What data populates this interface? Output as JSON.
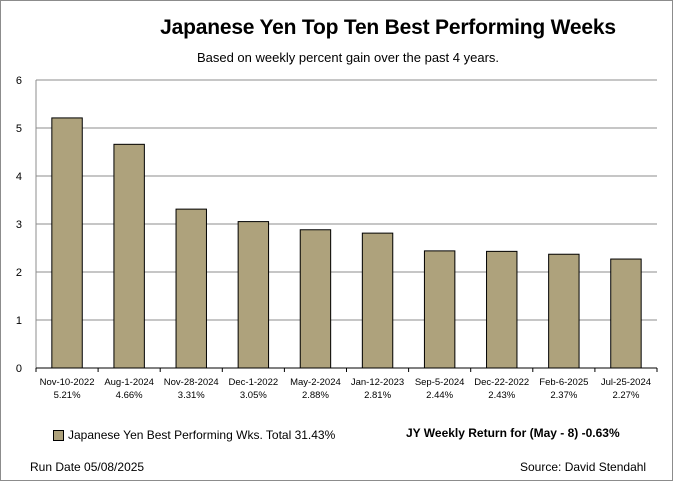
{
  "chart_data": {
    "type": "bar",
    "title": "Japanese Yen Top Ten Best Performing Weeks",
    "subtitle": "Based on weekly percent gain over the past 4 years.",
    "categories": [
      "Nov-10-2022",
      "Aug-1-2024",
      "Nov-28-2024",
      "Dec-1-2022",
      "May-2-2024",
      "Jan-12-2023",
      "Sep-5-2024",
      "Dec-22-2022",
      "Feb-6-2025",
      "Jul-25-2024"
    ],
    "value_labels": [
      "5.21%",
      "4.66%",
      "3.31%",
      "3.05%",
      "2.88%",
      "2.81%",
      "2.44%",
      "2.43%",
      "2.37%",
      "2.27%"
    ],
    "series": [
      {
        "name": "Japanese Yen Best Performing Wks. Total 31.43%",
        "values": [
          5.21,
          4.66,
          3.31,
          3.05,
          2.88,
          2.81,
          2.44,
          2.43,
          2.37,
          2.27
        ]
      }
    ],
    "ylim": [
      0,
      6
    ],
    "yticks": [
      0,
      1,
      2,
      3,
      4,
      5,
      6
    ],
    "grid": true,
    "legend_position": "bottom-left",
    "colors": {
      "bar_fill": "#aea27c",
      "bar_stroke": "#000000",
      "grid": "#8c8c8c"
    }
  },
  "annotations": {
    "weekly_return": "JY Weekly Return for (May - 8) -0.63%",
    "run_date": "Run Date 05/08/2025",
    "source": "Source: David Stendahl"
  }
}
